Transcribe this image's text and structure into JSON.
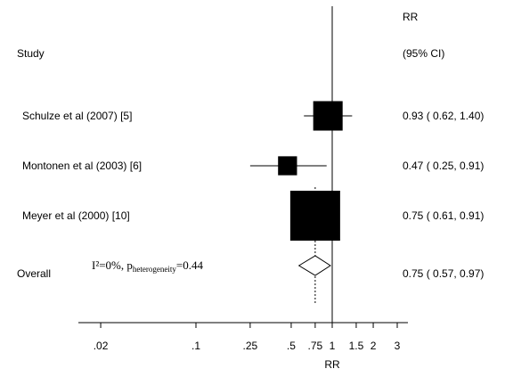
{
  "chart_data": {
    "type": "forest",
    "col_study": "Study",
    "col_rr_line1": "RR",
    "col_rr_line2": "(95% CI)",
    "xlabel": "RR",
    "x_scale": "log",
    "null_line": 1,
    "xlim": [
      0.0115,
      4.6
    ],
    "x_ticks": [
      {
        "value": 0.02,
        "label": ".02"
      },
      {
        "value": 0.1,
        "label": ".1"
      },
      {
        "value": 0.25,
        "label": ".25"
      },
      {
        "value": 0.5,
        "label": ".5"
      },
      {
        "value": 0.75,
        "label": ".75"
      },
      {
        "value": 1,
        "label": "1"
      },
      {
        "value": 1.5,
        "label": "1.5"
      },
      {
        "value": 2,
        "label": "2"
      },
      {
        "value": 3,
        "label": "3"
      }
    ],
    "studies": [
      {
        "name": "Schulze et al (2007) [5]",
        "rr": 0.93,
        "lo": 0.62,
        "hi": 1.4,
        "ci_text": "0.93 ( 0.62, 1.40)",
        "box_size": 0.59
      },
      {
        "name": "Montonen et al (2003) [6]",
        "rr": 0.47,
        "lo": 0.25,
        "hi": 0.91,
        "ci_text": "0.47 ( 0.25, 0.91)",
        "box_size": 0.38
      },
      {
        "name": "Meyer et al (2000) [10]",
        "rr": 0.75,
        "lo": 0.61,
        "hi": 0.91,
        "ci_text": "0.75 ( 0.61, 0.91)",
        "box_size": 1.0
      }
    ],
    "overall": {
      "label": "Overall",
      "rr": 0.75,
      "lo": 0.57,
      "hi": 0.97,
      "ci_text": "0.75 ( 0.57, 0.97)",
      "heterogeneity_prefix": "I²=0%,  p",
      "heterogeneity_sub": "heterogeneity",
      "heterogeneity_suffix": "=0.44"
    }
  }
}
